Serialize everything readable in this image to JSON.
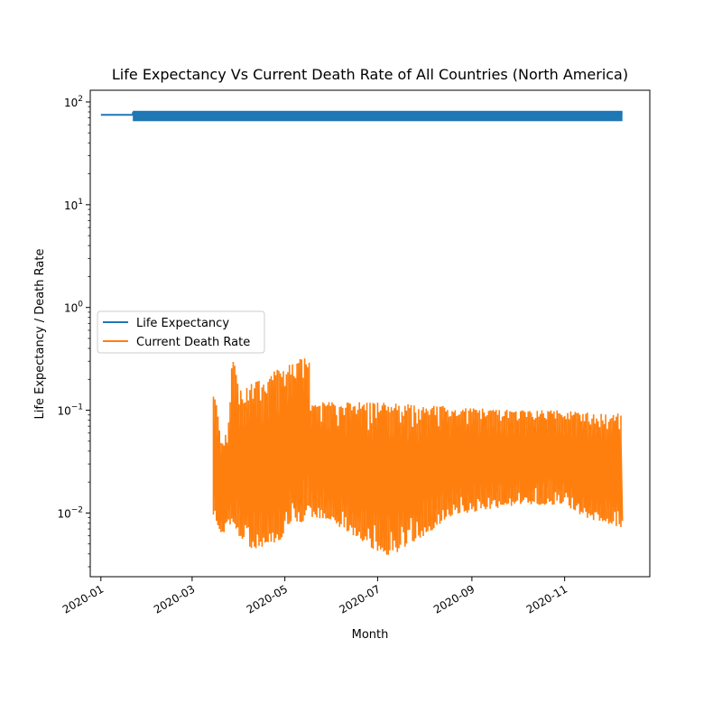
{
  "chart_data": {
    "type": "line",
    "title": "Life Expectancy Vs Current Death Rate of All Countries (North America)",
    "xlabel": "Month",
    "ylabel": "Life Expectancy / Death Rate",
    "yscale": "log",
    "ylim": [
      0.0024,
      130
    ],
    "xlim": [
      "2019-12-25",
      "2020-12-27"
    ],
    "grid": false,
    "legend_position": "center-left",
    "x_ticks": [
      {
        "date": "2020-01-01",
        "label": "2020-01"
      },
      {
        "date": "2020-03-01",
        "label": "2020-03"
      },
      {
        "date": "2020-05-01",
        "label": "2020-05"
      },
      {
        "date": "2020-07-01",
        "label": "2020-07"
      },
      {
        "date": "2020-09-01",
        "label": "2020-09"
      },
      {
        "date": "2020-11-01",
        "label": "2020-11"
      }
    ],
    "y_ticks": [
      {
        "value": 0.01,
        "base": "10",
        "exp": "−2"
      },
      {
        "value": 0.1,
        "base": "10",
        "exp": "−1"
      },
      {
        "value": 1,
        "base": "10",
        "exp": "0"
      },
      {
        "value": 10,
        "base": "10",
        "exp": "1"
      },
      {
        "value": 100,
        "base": "10",
        "exp": "2"
      }
    ],
    "series": [
      {
        "name": "Life Expectancy",
        "color": "#1f77b4",
        "points": [
          {
            "x": "2020-01-01",
            "y": 75
          },
          {
            "x": "2020-01-22",
            "y": 75
          },
          {
            "x": "2020-01-22",
            "y": 78
          },
          {
            "x": "2020-12-09",
            "y": 78
          }
        ],
        "band": {
          "start": "2020-01-22",
          "end": "2020-12-09",
          "low": 65,
          "high": 82
        }
      },
      {
        "name": "Current Death Rate",
        "color": "#ff7f0e",
        "envelope": [
          {
            "x": "2020-03-15",
            "high": 0.17,
            "low": 0.01
          },
          {
            "x": "2020-03-18",
            "high": 0.11,
            "low": 0.007
          },
          {
            "x": "2020-03-21",
            "high": 0.045,
            "low": 0.006
          },
          {
            "x": "2020-03-25",
            "high": 0.07,
            "low": 0.0075
          },
          {
            "x": "2020-03-28",
            "high": 0.35,
            "low": 0.008
          },
          {
            "x": "2020-04-01",
            "high": 0.16,
            "low": 0.006
          },
          {
            "x": "2020-04-08",
            "high": 0.18,
            "low": 0.0045
          },
          {
            "x": "2020-04-15",
            "high": 0.2,
            "low": 0.0042
          },
          {
            "x": "2020-04-22",
            "high": 0.22,
            "low": 0.005
          },
          {
            "x": "2020-04-29",
            "high": 0.27,
            "low": 0.0055
          },
          {
            "x": "2020-05-06",
            "high": 0.3,
            "low": 0.0085
          },
          {
            "x": "2020-05-13",
            "high": 0.32,
            "low": 0.008
          },
          {
            "x": "2020-05-17",
            "high": 0.33,
            "low": 0.009
          },
          {
            "x": "2020-05-18",
            "high": 0.12,
            "low": 0.009
          },
          {
            "x": "2020-06-01",
            "high": 0.12,
            "low": 0.008
          },
          {
            "x": "2020-06-15",
            "high": 0.12,
            "low": 0.006
          },
          {
            "x": "2020-07-01",
            "high": 0.12,
            "low": 0.0042
          },
          {
            "x": "2020-07-10",
            "high": 0.118,
            "low": 0.0038
          },
          {
            "x": "2020-07-20",
            "high": 0.115,
            "low": 0.0045
          },
          {
            "x": "2020-08-01",
            "high": 0.11,
            "low": 0.006
          },
          {
            "x": "2020-08-15",
            "high": 0.11,
            "low": 0.0085
          },
          {
            "x": "2020-09-01",
            "high": 0.105,
            "low": 0.01
          },
          {
            "x": "2020-10-01",
            "high": 0.1,
            "low": 0.012
          },
          {
            "x": "2020-11-01",
            "high": 0.1,
            "low": 0.012
          },
          {
            "x": "2020-11-15",
            "high": 0.095,
            "low": 0.009
          },
          {
            "x": "2020-12-01",
            "high": 0.093,
            "low": 0.0075
          },
          {
            "x": "2020-12-09",
            "high": 0.093,
            "low": 0.0072
          }
        ]
      }
    ]
  }
}
